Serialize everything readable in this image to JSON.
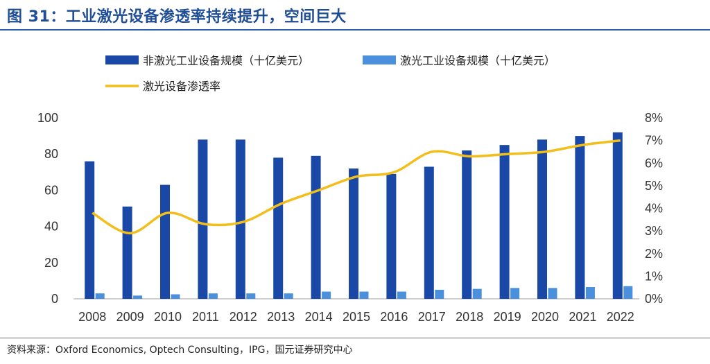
{
  "figure": {
    "title": "图 31：工业激光设备渗透率持续提升，空间巨大",
    "source": "资料来源：Oxford Economics, Optech Consulting，IPG，国元证券研究中心"
  },
  "colors": {
    "non_laser": "#1a48a6",
    "laser": "#4a90dc",
    "penetration": "#f2be1c",
    "axis": "#bfbfbf",
    "title": "#1f4e96"
  },
  "chart_data": {
    "type": "bar",
    "categories": [
      "2008",
      "2009",
      "2010",
      "2011",
      "2012",
      "2013",
      "2014",
      "2015",
      "2016",
      "2017",
      "2018",
      "2019",
      "2020",
      "2021",
      "2022"
    ],
    "series": [
      {
        "name": "非激光工业设备规模（十亿美元）",
        "kind": "bar",
        "axis": "left",
        "values": [
          76,
          51,
          63,
          88,
          88,
          78,
          79,
          72,
          69,
          73,
          82,
          85,
          88,
          90,
          92
        ]
      },
      {
        "name": "激光工业设备规模（十亿美元）",
        "kind": "bar",
        "axis": "left",
        "values": [
          3,
          1.8,
          2.5,
          3,
          3,
          3,
          4,
          4,
          4,
          5,
          5.5,
          6,
          6,
          6.5,
          7
        ]
      },
      {
        "name": "激光设备渗透率",
        "kind": "line",
        "axis": "right",
        "values": [
          0.038,
          0.029,
          0.038,
          0.033,
          0.034,
          0.042,
          0.048,
          0.054,
          0.056,
          0.065,
          0.063,
          0.064,
          0.065,
          0.068,
          0.07
        ]
      }
    ],
    "y_left": {
      "lim": [
        0,
        100
      ],
      "ticks": [
        0,
        20,
        40,
        60,
        80,
        100
      ],
      "tick_labels": [
        "0",
        "20",
        "40",
        "60",
        "80",
        "100"
      ]
    },
    "y_right": {
      "lim": [
        0,
        0.08
      ],
      "ticks": [
        0,
        0.01,
        0.02,
        0.03,
        0.04,
        0.05,
        0.06,
        0.07,
        0.08
      ],
      "tick_labels": [
        "0%",
        "1%",
        "2%",
        "3%",
        "4%",
        "5%",
        "6%",
        "7%",
        "8%"
      ]
    },
    "legend_position": "top",
    "grid": false
  }
}
